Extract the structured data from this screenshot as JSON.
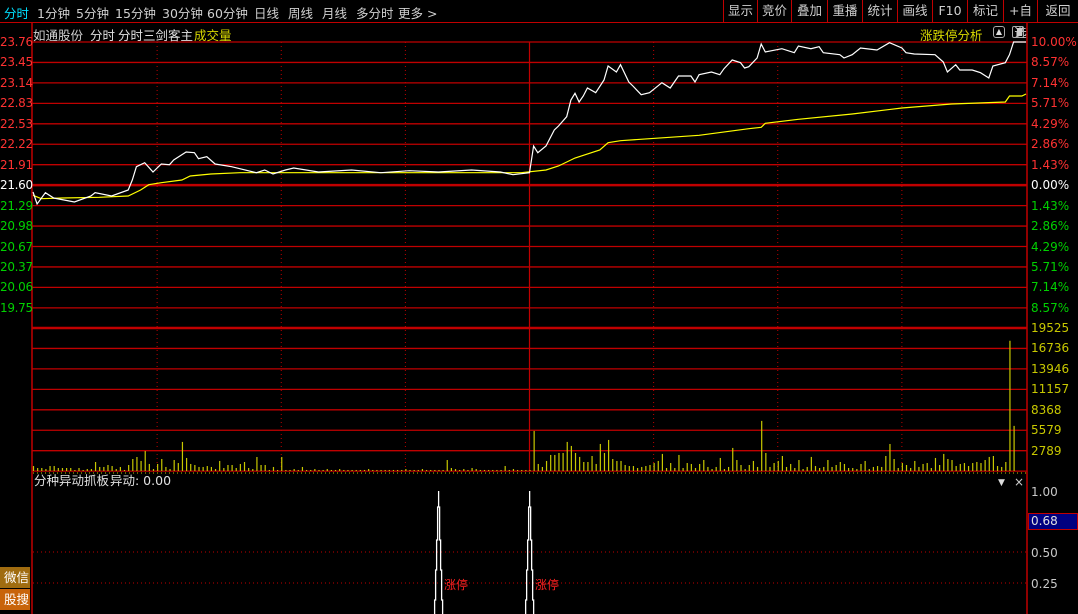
{
  "toolbar": {
    "tabs": [
      "分时",
      "1分钟",
      "5分钟",
      "15分钟",
      "30分钟",
      "60分钟",
      "日线",
      "周线",
      "月线",
      "多分时",
      "更多 >"
    ],
    "active_tab": "分时",
    "right_buttons": [
      "显示",
      "竞价",
      "叠加",
      "重播",
      "统计",
      "画线",
      "F10",
      "标记",
      "+自选",
      "返回"
    ]
  },
  "chart_header": {
    "stock_name": "如通股份",
    "mode": "分时",
    "indicator_main": "分时三剑客主",
    "volume_label": "成交量",
    "analysis_link": "涨跌停分析"
  },
  "indicator_panel": {
    "title": "分种异动抓板",
    "value_label": "异动: 0.00",
    "axis_labels": [
      "1.00",
      "0.50",
      "0.25"
    ],
    "cursor_value": "0.68",
    "signal_label": "涨停"
  },
  "side_buttons": [
    "微信",
    "股搜"
  ],
  "colors": {
    "up": "#ff3232",
    "down": "#00d000",
    "flat": "#ffffff",
    "grid": "#c00000",
    "price_line": "#ffffff",
    "avg_line": "#ffff00",
    "volume": "#c8c800",
    "cursor_bg": "#000080"
  },
  "chart_data": [
    {
      "type": "line",
      "title": "分时",
      "prev_close": 21.6,
      "price_axis_labels": [
        "23.76",
        "23.45",
        "23.14",
        "22.83",
        "22.53",
        "22.22",
        "21.91",
        "21.60",
        "21.29",
        "20.98",
        "20.67",
        "20.37",
        "20.06",
        "19.75"
      ],
      "percent_axis_labels": [
        "10.00%",
        "8.57%",
        "7.14%",
        "5.71%",
        "4.29%",
        "2.86%",
        "1.43%",
        "0.00%",
        "1.43%",
        "2.86%",
        "4.29%",
        "5.71%",
        "7.14%",
        "8.57%"
      ],
      "ylim": [
        19.44,
        23.76
      ],
      "xlim": [
        0,
        240
      ],
      "series": [
        {
          "key": "price",
          "points": [
            [
              0,
              21.51
            ],
            [
              1,
              21.33
            ],
            [
              3,
              21.5
            ],
            [
              5,
              21.42
            ],
            [
              10,
              21.36
            ],
            [
              14,
              21.45
            ],
            [
              15,
              21.5
            ],
            [
              19,
              21.45
            ],
            [
              23,
              21.54
            ],
            [
              24,
              21.69
            ],
            [
              25,
              21.89
            ],
            [
              27,
              21.95
            ],
            [
              29,
              21.81
            ],
            [
              31,
              21.93
            ],
            [
              33,
              21.92
            ],
            [
              34,
              21.99
            ],
            [
              37,
              22.11
            ],
            [
              39,
              22.1
            ],
            [
              40,
              22.01
            ],
            [
              42,
              22.04
            ],
            [
              44,
              21.93
            ],
            [
              48,
              21.89
            ],
            [
              54,
              21.8
            ],
            [
              56,
              21.84
            ],
            [
              58,
              21.78
            ],
            [
              61,
              21.84
            ],
            [
              63,
              21.87
            ],
            [
              69,
              21.81
            ],
            [
              77,
              21.84
            ],
            [
              84,
              21.8
            ],
            [
              91,
              21.83
            ],
            [
              98,
              21.81
            ],
            [
              106,
              21.84
            ],
            [
              113,
              21.81
            ],
            [
              116,
              21.77
            ],
            [
              120,
              21.8
            ],
            [
              121,
              22.2
            ],
            [
              122,
              22.1
            ],
            [
              124,
              22.2
            ],
            [
              126,
              22.44
            ],
            [
              127,
              22.5
            ],
            [
              129,
              22.64
            ],
            [
              130,
              22.89
            ],
            [
              131,
              22.99
            ],
            [
              132,
              22.86
            ],
            [
              133,
              22.95
            ],
            [
              134,
              23.07
            ],
            [
              136,
              23.0
            ],
            [
              138,
              23.19
            ],
            [
              139,
              23.4
            ],
            [
              141,
              23.31
            ],
            [
              142,
              23.42
            ],
            [
              144,
              23.16
            ],
            [
              145,
              23.1
            ],
            [
              147,
              22.97
            ],
            [
              149,
              23.0
            ],
            [
              152,
              23.15
            ],
            [
              154,
              23.07
            ],
            [
              156,
              23.25
            ],
            [
              159,
              23.25
            ],
            [
              160,
              23.16
            ],
            [
              161,
              23.27
            ],
            [
              164,
              23.31
            ],
            [
              166,
              23.27
            ],
            [
              167,
              23.36
            ],
            [
              169,
              23.49
            ],
            [
              171,
              23.45
            ],
            [
              172,
              23.37
            ],
            [
              173,
              23.39
            ],
            [
              175,
              23.52
            ],
            [
              176,
              23.73
            ],
            [
              177,
              23.61
            ],
            [
              181,
              23.66
            ],
            [
              184,
              23.6
            ],
            [
              185,
              23.7
            ],
            [
              188,
              23.66
            ],
            [
              190,
              23.69
            ],
            [
              191,
              23.6
            ],
            [
              195,
              23.57
            ],
            [
              196,
              23.52
            ],
            [
              198,
              23.57
            ],
            [
              200,
              23.67
            ],
            [
              204,
              23.64
            ],
            [
              207,
              23.75
            ],
            [
              210,
              23.67
            ],
            [
              211,
              23.6
            ],
            [
              213,
              23.58
            ],
            [
              218,
              23.57
            ],
            [
              220,
              23.46
            ],
            [
              221,
              23.31
            ],
            [
              223,
              23.42
            ],
            [
              224,
              23.34
            ],
            [
              227,
              23.34
            ],
            [
              229,
              23.3
            ],
            [
              231,
              23.22
            ],
            [
              232,
              23.4
            ],
            [
              235,
              23.45
            ],
            [
              236,
              23.57
            ],
            [
              237,
              23.76
            ],
            [
              240,
              23.76
            ]
          ]
        },
        {
          "key": "average",
          "points": [
            [
              0,
              21.46
            ],
            [
              2,
              21.41
            ],
            [
              7,
              21.42
            ],
            [
              16,
              21.43
            ],
            [
              23,
              21.45
            ],
            [
              26,
              21.54
            ],
            [
              28,
              21.62
            ],
            [
              31,
              21.65
            ],
            [
              36,
              21.69
            ],
            [
              38,
              21.75
            ],
            [
              43,
              21.78
            ],
            [
              50,
              21.8
            ],
            [
              118,
              21.8
            ],
            [
              124,
              21.84
            ],
            [
              127,
              21.9
            ],
            [
              131,
              22.02
            ],
            [
              137,
              22.14
            ],
            [
              139,
              22.25
            ],
            [
              142,
              22.28
            ],
            [
              149,
              22.31
            ],
            [
              161,
              22.36
            ],
            [
              173,
              22.46
            ],
            [
              176,
              22.48
            ],
            [
              177,
              22.54
            ],
            [
              185,
              22.6
            ],
            [
              198,
              22.68
            ],
            [
              210,
              22.77
            ],
            [
              222,
              22.83
            ],
            [
              235,
              22.86
            ],
            [
              236,
              22.95
            ],
            [
              239,
              22.95
            ],
            [
              240,
              22.98
            ]
          ]
        }
      ]
    },
    {
      "type": "bar",
      "title": "成交量",
      "axis_labels": [
        "19525",
        "16736",
        "13946",
        "11157",
        "8368",
        "5579",
        "2789"
      ],
      "ylim": [
        0,
        19525
      ],
      "values": [
        680,
        410,
        410,
        270,
        680,
        680,
        410,
        410,
        410,
        410,
        140,
        410,
        140,
        270,
        270,
        1230,
        550,
        550,
        820,
        680,
        270,
        550,
        140,
        820,
        1640,
        1910,
        1370,
        2730,
        960,
        270,
        960,
        1640,
        550,
        270,
        1500,
        1090,
        3970,
        1780,
        960,
        820,
        550,
        550,
        680,
        550,
        270,
        1370,
        410,
        820,
        820,
        410,
        960,
        1230,
        410,
        270,
        1910,
        820,
        820,
        140,
        550,
        140,
        1910,
        140,
        140,
        270,
        140,
        550,
        140,
        140,
        270,
        140,
        140,
        270,
        140,
        140,
        270,
        140,
        140,
        140,
        140,
        140,
        140,
        270,
        140,
        140,
        140,
        140,
        140,
        140,
        140,
        140,
        270,
        140,
        140,
        140,
        270,
        140,
        140,
        140,
        140,
        140,
        1500,
        410,
        270,
        140,
        270,
        140,
        410,
        270,
        140,
        140,
        140,
        140,
        140,
        140,
        680,
        140,
        270,
        140,
        140,
        140,
        140,
        5470,
        960,
        550,
        1370,
        2190,
        2190,
        2460,
        2460,
        3970,
        3420,
        2460,
        1920,
        1230,
        1230,
        2050,
        960,
        3690,
        2460,
        4240,
        1640,
        1370,
        1370,
        820,
        680,
        680,
        410,
        550,
        680,
        820,
        1090,
        1370,
        2330,
        410,
        1090,
        410,
        2190,
        410,
        1090,
        960,
        410,
        960,
        1500,
        550,
        270,
        550,
        1780,
        270,
        550,
        3150,
        1500,
        820,
        270,
        820,
        1370,
        550,
        6840,
        2460,
        550,
        1090,
        1370,
        2050,
        550,
        960,
        410,
        1500,
        270,
        550,
        1920,
        680,
        410,
        550,
        1500,
        550,
        820,
        1230,
        960,
        410,
        410,
        270,
        960,
        1370,
        270,
        550,
        680,
        550,
        2050,
        3690,
        1640,
        410,
        1090,
        820,
        410,
        1370,
        550,
        960,
        1090,
        410,
        1780,
        820,
        2330,
        1640,
        1500,
        680,
        960,
        1090,
        680,
        1090,
        1230,
        1090,
        1500,
        1920,
        2050,
        680,
        550,
        1230,
        17780,
        6160
      ]
    },
    {
      "type": "line",
      "title": "分种异动抓板",
      "ylim": [
        0,
        1
      ],
      "spikes": [
        {
          "minute": 99,
          "value": 1.0
        },
        {
          "minute": 121,
          "value": 1.0
        }
      ]
    }
  ]
}
